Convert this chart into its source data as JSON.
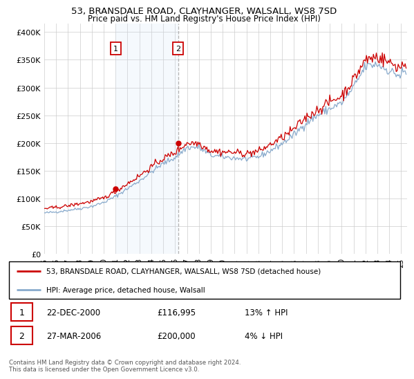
{
  "title": "53, BRANSDALE ROAD, CLAYHANGER, WALSALL, WS8 7SD",
  "subtitle": "Price paid vs. HM Land Registry's House Price Index (HPI)",
  "ylabel_ticks": [
    "£0",
    "£50K",
    "£100K",
    "£150K",
    "£200K",
    "£250K",
    "£300K",
    "£350K",
    "£400K"
  ],
  "ytick_values": [
    0,
    50000,
    100000,
    150000,
    200000,
    250000,
    300000,
    350000,
    400000
  ],
  "ylim": [
    0,
    415000
  ],
  "xlim_start": 1995.0,
  "xlim_end": 2025.5,
  "legend_line1": "53, BRANSDALE ROAD, CLAYHANGER, WALSALL, WS8 7SD (detached house)",
  "legend_line2": "HPI: Average price, detached house, Walsall",
  "annotation1_label": "1",
  "annotation1_date": "22-DEC-2000",
  "annotation1_price": "£116,995",
  "annotation1_hpi": "13% ↑ HPI",
  "annotation2_label": "2",
  "annotation2_date": "27-MAR-2006",
  "annotation2_price": "£200,000",
  "annotation2_hpi": "4% ↓ HPI",
  "footer": "Contains HM Land Registry data © Crown copyright and database right 2024.\nThis data is licensed under the Open Government Licence v3.0.",
  "line_red_color": "#cc0000",
  "line_blue_color": "#88aacc",
  "annotation_box_color": "#cc0000",
  "shade_color": "#cce0f5",
  "sale1_x": 2001.0,
  "sale1_y": 116995,
  "sale2_x": 2006.25,
  "sale2_y": 200000,
  "xtick_labels": [
    "95",
    "96",
    "97",
    "98",
    "99",
    "00",
    "01",
    "02",
    "03",
    "04",
    "05",
    "06",
    "07",
    "08",
    "09",
    "10",
    "11",
    "12",
    "13",
    "14",
    "15",
    "16",
    "17",
    "18",
    "19",
    "20",
    "21",
    "22",
    "23",
    "24",
    "25"
  ],
  "xtick_years": [
    1995,
    1996,
    1997,
    1998,
    1999,
    2000,
    2001,
    2002,
    2003,
    2004,
    2005,
    2006,
    2007,
    2008,
    2009,
    2010,
    2011,
    2012,
    2013,
    2014,
    2015,
    2016,
    2017,
    2018,
    2019,
    2020,
    2021,
    2022,
    2023,
    2024,
    2025
  ]
}
